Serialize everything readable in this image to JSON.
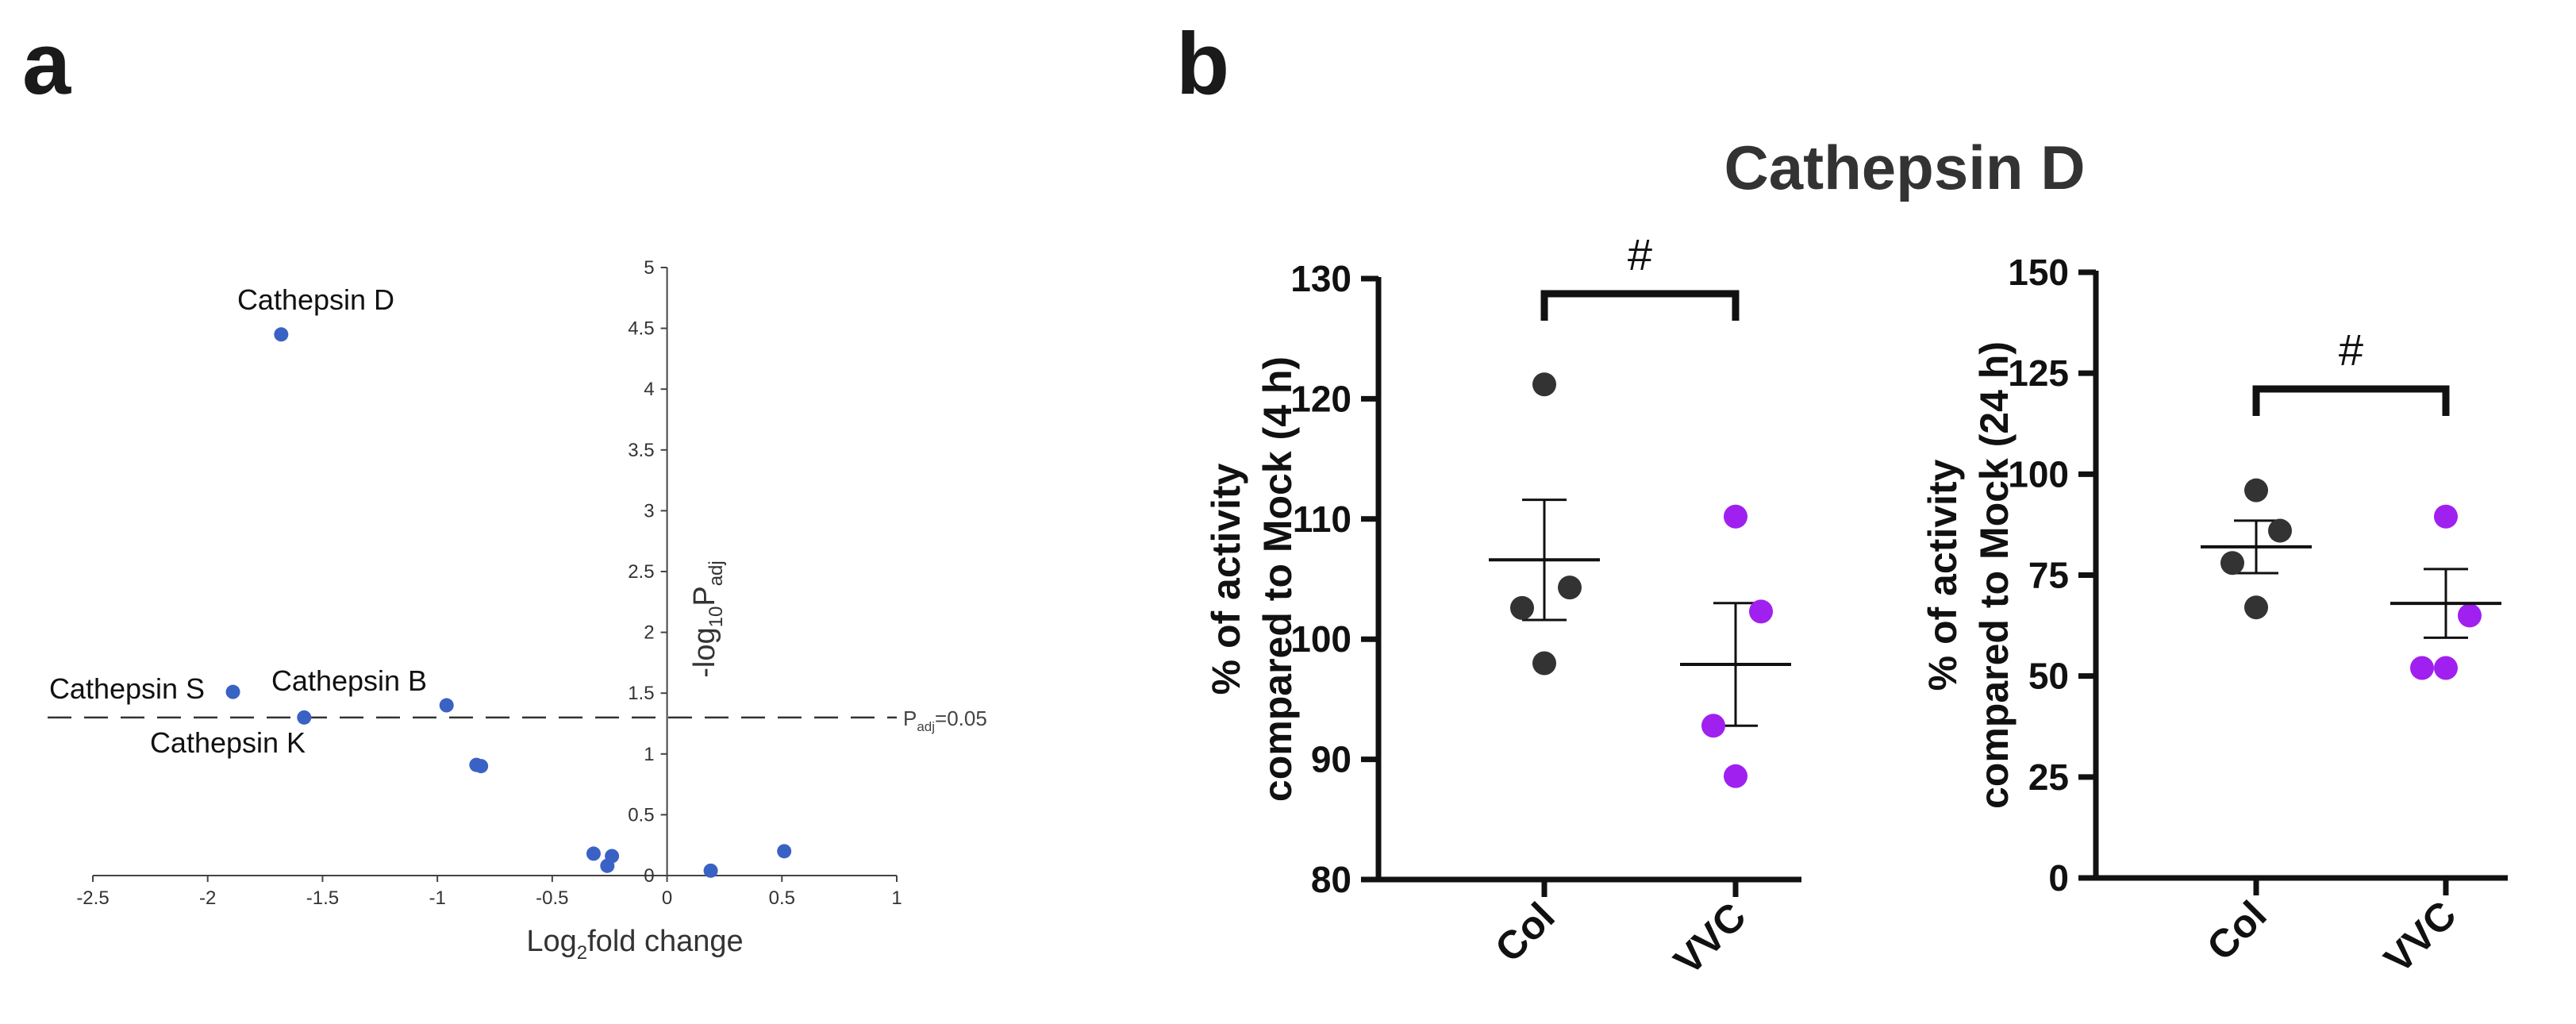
{
  "panels": {
    "a": "a",
    "b": "b"
  },
  "chart_data": [
    {
      "type": "scatter",
      "xlabel": "Log2fold change",
      "xlabel_parts": {
        "base": "Log",
        "sub": "2",
        "rest": "fold change"
      },
      "ylabel": "-log10Padj",
      "ylabel_parts": {
        "base": "-log",
        "sub": "10",
        "mid": "P",
        "sub2": "adj"
      },
      "xlim": [
        -2.5,
        1
      ],
      "ylim": [
        0,
        5
      ],
      "xticks": [
        "-2.5",
        "-2",
        "-1.5",
        "-1",
        "-0.5",
        "0",
        "0.5",
        "1"
      ],
      "yticks": [
        "0",
        "0.5",
        "1",
        "1.5",
        "2",
        "2.5",
        "3",
        "3.5",
        "4",
        "4.5",
        "5"
      ],
      "threshold": {
        "y": 1.3,
        "label": "Padj=0.05",
        "label_parts": {
          "base": "P",
          "sub": "adj",
          "rest": "=0.05"
        }
      },
      "point_color": "#3a62c4",
      "points": [
        {
          "x": -1.68,
          "y": 4.45,
          "label": "Cathepsin D"
        },
        {
          "x": -1.89,
          "y": 1.51,
          "label": "Cathepsin S"
        },
        {
          "x": -0.96,
          "y": 1.4,
          "label": "Cathepsin B"
        },
        {
          "x": -1.58,
          "y": 1.3,
          "label": "Cathepsin K"
        },
        {
          "x": -0.83,
          "y": 0.91,
          "label": ""
        },
        {
          "x": -0.81,
          "y": 0.9,
          "label": ""
        },
        {
          "x": -0.32,
          "y": 0.18,
          "label": ""
        },
        {
          "x": -0.24,
          "y": 0.16,
          "label": ""
        },
        {
          "x": -0.26,
          "y": 0.08,
          "label": ""
        },
        {
          "x": 0.19,
          "y": 0.04,
          "label": ""
        },
        {
          "x": 0.51,
          "y": 0.2,
          "label": ""
        }
      ]
    },
    {
      "type": "scatter",
      "title": "Cathepsin D",
      "ylabel_line1": "% of activity",
      "ylabel_line2": "compared to Mock (4 h)",
      "categories": [
        "Col",
        "VVC"
      ],
      "ylim": [
        80,
        130
      ],
      "yticks": [
        "80",
        "90",
        "100",
        "110",
        "120",
        "130"
      ],
      "significance": "#",
      "series": [
        {
          "category": "Col",
          "color": "#333333",
          "values": [
            121.2,
            104.3,
            102.6,
            98.0
          ],
          "mean": 106.6,
          "sem_low": 101.6,
          "sem_high": 111.6
        },
        {
          "category": "VVC",
          "color": "#a020f0",
          "values": [
            110.2,
            102.3,
            92.8,
            88.6
          ],
          "mean": 97.9,
          "sem_low": 92.8,
          "sem_high": 103.0
        }
      ]
    },
    {
      "type": "scatter",
      "ylabel_line1": "% of activity",
      "ylabel_line2": "compared to Mock (24 h)",
      "categories": [
        "Col",
        "VVC"
      ],
      "ylim": [
        0,
        150
      ],
      "yticks": [
        "0",
        "25",
        "50",
        "75",
        "100",
        "125",
        "150"
      ],
      "significance": "#",
      "series": [
        {
          "category": "Col",
          "color": "#333333",
          "values": [
            96.0,
            86.0,
            78.0,
            67.0
          ],
          "mean": 82.0,
          "sem_low": 75.5,
          "sem_high": 88.5
        },
        {
          "category": "VVC",
          "color": "#a020f0",
          "values": [
            89.5,
            65.0,
            52.0,
            52.0
          ],
          "mean": 68.0,
          "sem_low": 59.5,
          "sem_high": 76.5
        }
      ]
    }
  ]
}
